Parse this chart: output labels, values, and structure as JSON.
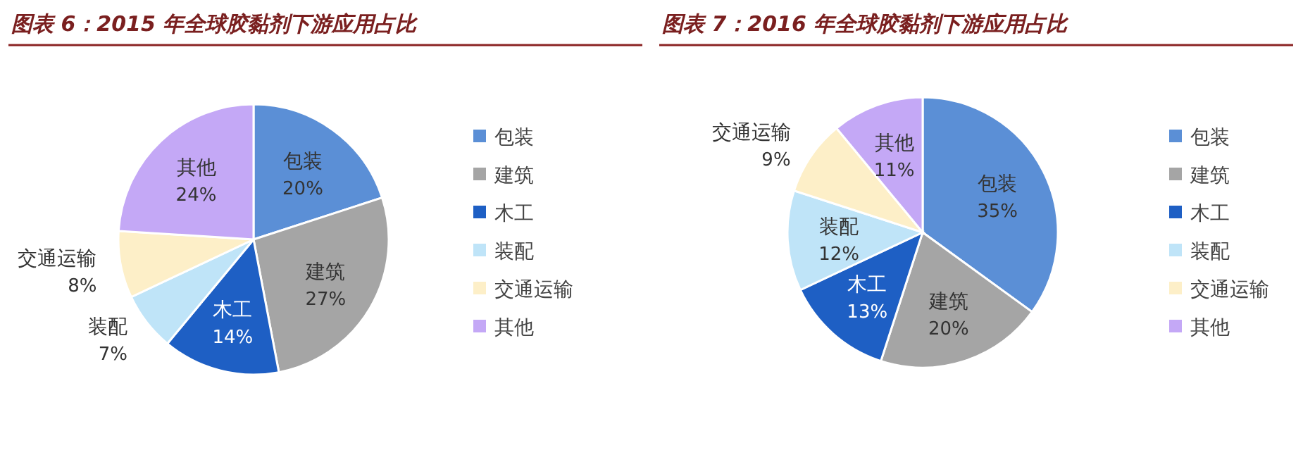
{
  "chart_data": [
    {
      "type": "pie",
      "title": "图表 6：2015 年全球胶黏剂下游应用占比",
      "categories": [
        "包装",
        "建筑",
        "木工",
        "装配",
        "交通运输",
        "其他"
      ],
      "values": [
        20,
        27,
        14,
        7,
        8,
        24
      ],
      "value_labels": [
        "20%",
        "27%",
        "14%",
        "7%",
        "8%",
        "24%"
      ],
      "colors": [
        "#5b8fd6",
        "#a5a5a5",
        "#1e5fc4",
        "#bfe4f8",
        "#fdefc8",
        "#c4a8f6"
      ],
      "legend": "right"
    },
    {
      "type": "pie",
      "title": "图表 7：2016 年全球胶黏剂下游应用占比",
      "categories": [
        "包装",
        "建筑",
        "木工",
        "装配",
        "交通运输",
        "其他"
      ],
      "values": [
        35,
        20,
        13,
        12,
        9,
        11
      ],
      "value_labels": [
        "35%",
        "20%",
        "13%",
        "12%",
        "9%",
        "11%"
      ],
      "colors": [
        "#5b8fd6",
        "#a5a5a5",
        "#1e5fc4",
        "#bfe4f8",
        "#fdefc8",
        "#c4a8f6"
      ],
      "legend": "right"
    }
  ]
}
